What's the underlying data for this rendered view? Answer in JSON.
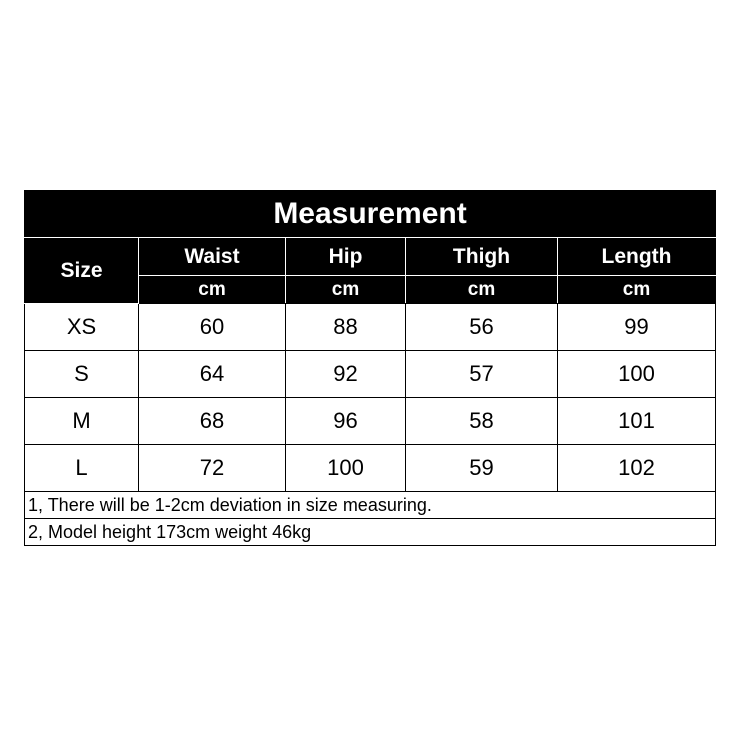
{
  "title": "Measurement",
  "size_header": "Size",
  "columns": [
    {
      "name": "Waist",
      "unit": "cm"
    },
    {
      "name": "Hip",
      "unit": "cm"
    },
    {
      "name": "Thigh",
      "unit": "cm"
    },
    {
      "name": "Length",
      "unit": "cm"
    }
  ],
  "rows": [
    [
      "XS",
      "60",
      "88",
      "56",
      "99"
    ],
    [
      "S",
      "64",
      "92",
      "57",
      "100"
    ],
    [
      "M",
      "68",
      "96",
      "58",
      "101"
    ],
    [
      "L",
      "72",
      "100",
      "59",
      "102"
    ]
  ],
  "notes": [
    "1, There will be 1-2cm deviation in size measuring.",
    "2, Model height 173cm weight 46kg"
  ]
}
